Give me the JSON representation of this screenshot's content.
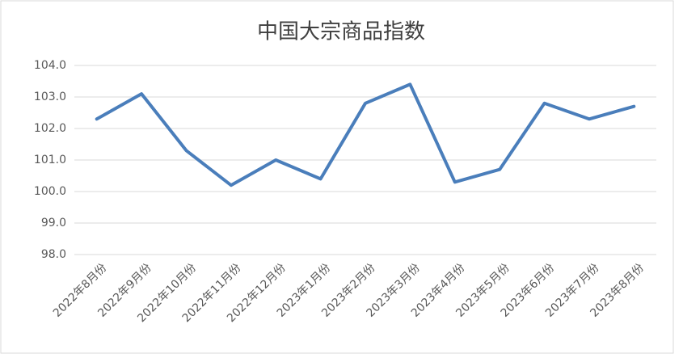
{
  "chart_data": {
    "type": "line",
    "title": "中国大宗商品指数",
    "categories": [
      "2022年8月份",
      "2022年9月份",
      "2022年10月份",
      "2022年11月份",
      "2022年12月份",
      "2023年1月份",
      "2023年2月份",
      "2023年3月份",
      "2023年4月份",
      "2023年5月份",
      "2023年6月份",
      "2023年7月份",
      "2023年8月份"
    ],
    "values": [
      102.3,
      103.1,
      101.3,
      100.2,
      101.0,
      100.4,
      102.8,
      103.4,
      100.3,
      100.7,
      102.8,
      102.3,
      102.7
    ],
    "color": "#4a7ebb",
    "ylim": [
      98,
      104
    ],
    "yticks": [
      {
        "value": 98,
        "label": "98.0"
      },
      {
        "value": 99,
        "label": "99.0"
      },
      {
        "value": 100,
        "label": "100.0"
      },
      {
        "value": 101,
        "label": "101.0"
      },
      {
        "value": 102,
        "label": "102.0"
      },
      {
        "value": 103,
        "label": "103.0"
      },
      {
        "value": 104,
        "label": "104.0"
      }
    ],
    "grid": true
  }
}
